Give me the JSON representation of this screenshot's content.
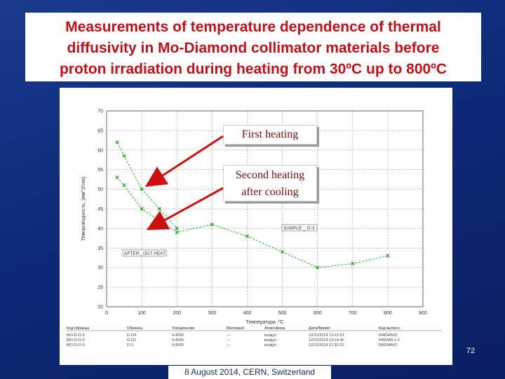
{
  "slide": {
    "title": "Measurements of temperature dependence of thermal\ndiffusivity in Mo-Diamond collimator materials before\nproton irradiation during heating from 30ºC up to 800ºC",
    "footer": "8 August 2014, CERN, Switzerland",
    "page_number": "72",
    "callouts": {
      "first": "First heating",
      "second_line1": "Second heating",
      "second_line2": "after cooling"
    },
    "colors": {
      "title": "#c0101a",
      "background": "#0d2a78",
      "arrow": "#cc1111",
      "series": "#22aa22"
    }
  },
  "chart_data": {
    "type": "scatter",
    "xlabel": "Температура ,ºС",
    "ylabel": "Темпроводность, (мм^2/сек)",
    "xlim": [
      0,
      900
    ],
    "ylim": [
      20,
      70
    ],
    "xticks": [
      "0",
      "100",
      "200",
      "300",
      "400",
      "500",
      "600",
      "700",
      "800",
      "900"
    ],
    "yticks": [
      "20",
      "25",
      "30",
      "35",
      "40",
      "45",
      "50",
      "55",
      "60",
      "65",
      "70"
    ],
    "grid": true,
    "annotations": [
      "SAMPLE _ O-3",
      "AFTER _OUT HEAT"
    ],
    "series": [
      {
        "name": "First heating",
        "x": [
          30,
          50,
          100,
          150,
          200
        ],
        "y": [
          62,
          58.5,
          50,
          45,
          40
        ]
      },
      {
        "name": "Second heating after cooling",
        "x": [
          30,
          50,
          100,
          200,
          300,
          400,
          500,
          600,
          700,
          800
        ],
        "y": [
          53,
          51,
          45,
          39,
          41,
          38,
          34,
          30,
          31,
          33
        ]
      }
    ],
    "table": {
      "headers": [
        "Код образца",
        "Образец",
        "Толщина мм",
        "Материал",
        "Атмосфера",
        "Дата/Время",
        "Код вычисл."
      ],
      "rows": [
        [
          "MO-D-O-3",
          "D-O4",
          "4.4900",
          "—",
          "воздух",
          "12/12/2014 13:23:13",
          "RADIAN/O"
        ],
        [
          "MO-D-O-3",
          "D-O1",
          "4.4900",
          "—",
          "воздух",
          "12/12/2014 14:14:40",
          "RADIAN x 2"
        ],
        [
          "MO-D-O-3",
          "D-3",
          "4.4900",
          "—",
          "воздух",
          "12/12/2014 11:30:13",
          "RADIAN/O"
        ]
      ]
    }
  }
}
